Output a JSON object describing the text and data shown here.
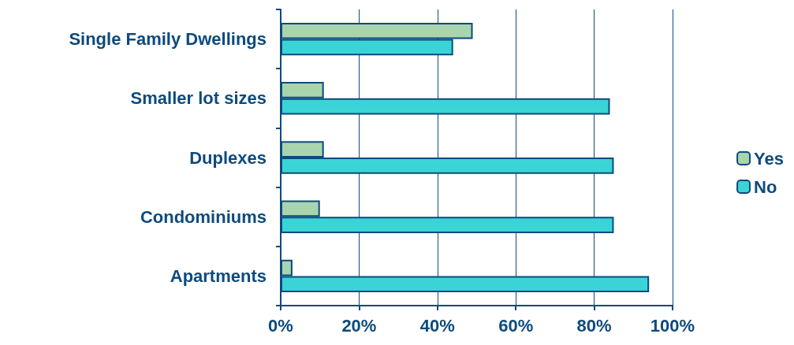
{
  "chart_data": {
    "type": "bar",
    "orientation": "horizontal",
    "categories": [
      "Single Family Dwellings",
      "Smaller lot sizes",
      "Duplexes",
      "Condominiums",
      "Apartments"
    ],
    "series": [
      {
        "name": "Yes",
        "color": "#a8d5ad",
        "values": [
          49,
          11,
          11,
          10,
          3
        ]
      },
      {
        "name": "No",
        "color": "#3ad4d6",
        "values": [
          44,
          84,
          85,
          85,
          94
        ]
      }
    ],
    "xlim": [
      0,
      100
    ],
    "xticks": [
      {
        "value": 0,
        "label": "0%"
      },
      {
        "value": 20,
        "label": "20%"
      },
      {
        "value": 40,
        "label": "40%"
      },
      {
        "value": 60,
        "label": "60%"
      },
      {
        "value": 80,
        "label": "80%"
      },
      {
        "value": 100,
        "label": "100%"
      }
    ],
    "grid": "x",
    "legend": "right"
  }
}
